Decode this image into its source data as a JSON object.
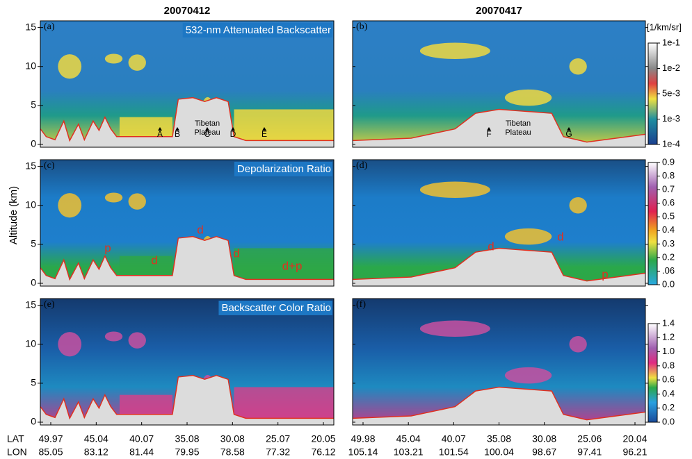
{
  "dates": [
    "20070412",
    "20070417"
  ],
  "y_axis": {
    "label": "Altitude (km)",
    "ticks": [
      "0",
      "5",
      "10",
      "15"
    ]
  },
  "panels": [
    {
      "label": "(a)",
      "title": "532-nm Attenuated Backscatter",
      "annotations": [
        "Tibetan",
        "Plateau",
        "A",
        "B",
        "C",
        "D",
        "E"
      ]
    },
    {
      "label": "(b)",
      "annotations": [
        "Tibetan",
        "Plateau",
        "F",
        "G"
      ]
    },
    {
      "label": "(c)",
      "title": "Depolarization Ratio",
      "annotations": [
        "d",
        "d",
        "d",
        "p",
        "d+p"
      ]
    },
    {
      "label": "(d)",
      "annotations": [
        "d",
        "d",
        "p"
      ]
    },
    {
      "label": "(e)",
      "title": "Backscatter Color Ratio"
    },
    {
      "label": "(f)"
    }
  ],
  "colorbars": [
    {
      "unit": "[1/km/sr]",
      "labels": [
        "1e-1",
        "1e-2",
        "5e-3",
        "1e-3",
        "1e-4"
      ]
    },
    {
      "labels": [
        "0.9",
        "0.8",
        "0.7",
        "0.6",
        "0.5",
        "0.4",
        "0.3",
        "0.2",
        ".06",
        "0.0"
      ]
    },
    {
      "labels": [
        "1.4",
        "1.2",
        "1.0",
        "0.8",
        "0.6",
        "0.4",
        "0.2",
        "0.0"
      ]
    }
  ],
  "x_axis": {
    "lat_label": "LAT",
    "lon_label": "LON",
    "left": {
      "lat": [
        "49.97",
        "45.04",
        "40.07",
        "35.08",
        "30.08",
        "25.07",
        "20.05"
      ],
      "lon": [
        "85.05",
        "83.12",
        "81.44",
        "79.95",
        "78.58",
        "77.32",
        "76.12"
      ]
    },
    "right": {
      "lat": [
        "49.98",
        "45.04",
        "40.07",
        "35.08",
        "30.08",
        "25.06",
        "20.04"
      ],
      "lon": [
        "105.14",
        "103.21",
        "101.54",
        "100.04",
        "98.67",
        "97.41",
        "96.21"
      ]
    }
  }
}
